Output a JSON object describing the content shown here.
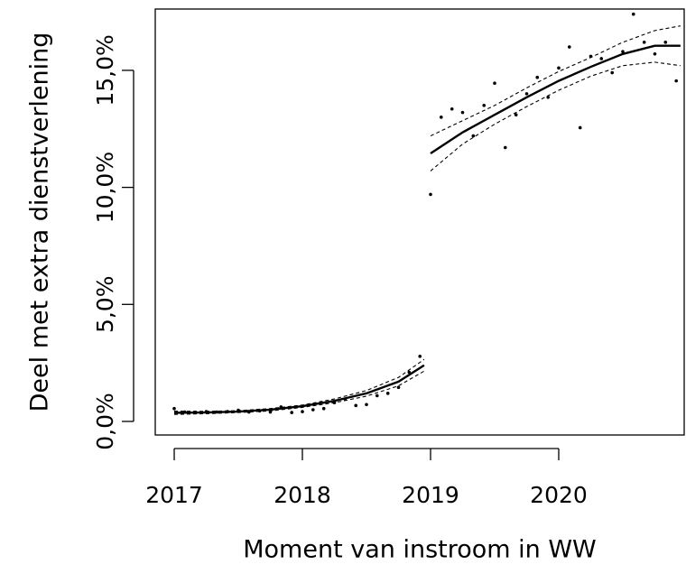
{
  "chart_data": {
    "type": "scatter",
    "x_label": "Moment van instroom in WW",
    "y_label": "Deel met extra dienstverlening",
    "xlim": [
      2016.852,
      2020.979
    ],
    "ylim": [
      -0.58,
      17.62
    ],
    "xticks": [
      2017,
      2018,
      2019,
      2020
    ],
    "yticks": [
      {
        "value": 0,
        "label": "0,0%"
      },
      {
        "value": 5,
        "label": "5,0%"
      },
      {
        "value": 10,
        "label": "10,0%"
      },
      {
        "value": 15,
        "label": "15,0%"
      }
    ],
    "series": [
      {
        "style": "points",
        "color": "#000000",
        "x": [
          2017,
          2017.083,
          2017.167,
          2017.25,
          2017.333,
          2017.417,
          2017.5,
          2017.583,
          2017.667,
          2017.75,
          2017.833,
          2017.917,
          2018,
          2018.083,
          2018.167,
          2018.25,
          2018.333,
          2018.417,
          2018.5,
          2018.583,
          2018.667,
          2018.75,
          2018.833,
          2018.917,
          2019,
          2019.083,
          2019.167,
          2019.25,
          2019.333,
          2019.417,
          2019.5,
          2019.583,
          2019.667,
          2019.75,
          2019.833,
          2019.917,
          2020,
          2020.083,
          2020.167,
          2020.25,
          2020.333,
          2020.417,
          2020.5,
          2020.583,
          2020.667,
          2020.75,
          2020.833,
          2020.917
        ],
        "values": [
          0.55,
          0.4,
          0.38,
          0.42,
          0.4,
          0.42,
          0.48,
          0.4,
          0.45,
          0.4,
          0.62,
          0.38,
          0.42,
          0.5,
          0.55,
          0.8,
          0.95,
          0.68,
          0.72,
          1.1,
          1.2,
          1.45,
          2.1,
          2.78,
          9.7,
          13.0,
          13.35,
          13.2,
          12.2,
          13.5,
          14.45,
          11.7,
          13.1,
          14.0,
          14.7,
          13.85,
          15.1,
          16.0,
          12.55,
          15.6,
          15.5,
          14.9,
          15.8,
          17.4,
          16.2,
          15.7,
          16.2,
          14.55
        ]
      },
      {
        "style": "solid",
        "color": "#000000",
        "x": [
          2017,
          2017.25,
          2017.5,
          2017.75,
          2018,
          2018.25,
          2018.5,
          2018.75,
          2018.95
        ],
        "values": [
          0.37,
          0.38,
          0.42,
          0.5,
          0.65,
          0.88,
          1.2,
          1.7,
          2.4
        ]
      },
      {
        "style": "dashed",
        "color": "#000000",
        "x": [
          2017,
          2017.25,
          2017.5,
          2017.75,
          2018,
          2018.25,
          2018.5,
          2018.75,
          2018.95
        ],
        "values": [
          0.3,
          0.33,
          0.38,
          0.45,
          0.6,
          0.8,
          1.08,
          1.52,
          2.15
        ]
      },
      {
        "style": "dashed",
        "color": "#000000",
        "x": [
          2017,
          2017.25,
          2017.5,
          2017.75,
          2018,
          2018.25,
          2018.5,
          2018.75,
          2018.95
        ],
        "values": [
          0.44,
          0.43,
          0.46,
          0.55,
          0.7,
          0.96,
          1.32,
          1.88,
          2.65
        ]
      },
      {
        "style": "solid",
        "color": "#000000",
        "x": [
          2019,
          2019.25,
          2019.5,
          2019.75,
          2020,
          2020.25,
          2020.5,
          2020.75,
          2020.95
        ],
        "values": [
          11.45,
          12.35,
          13.1,
          13.85,
          14.55,
          15.15,
          15.7,
          16.05,
          16.05
        ]
      },
      {
        "style": "dashed",
        "color": "#000000",
        "x": [
          2019,
          2019.25,
          2019.5,
          2019.75,
          2020,
          2020.25,
          2020.5,
          2020.75,
          2020.95
        ],
        "values": [
          10.7,
          11.85,
          12.7,
          13.45,
          14.15,
          14.75,
          15.2,
          15.35,
          15.2
        ]
      },
      {
        "style": "dashed",
        "color": "#000000",
        "x": [
          2019,
          2019.25,
          2019.5,
          2019.75,
          2020,
          2020.25,
          2020.5,
          2020.75,
          2020.95
        ],
        "values": [
          12.2,
          12.85,
          13.5,
          14.25,
          14.95,
          15.55,
          16.2,
          16.7,
          16.9
        ]
      }
    ]
  }
}
